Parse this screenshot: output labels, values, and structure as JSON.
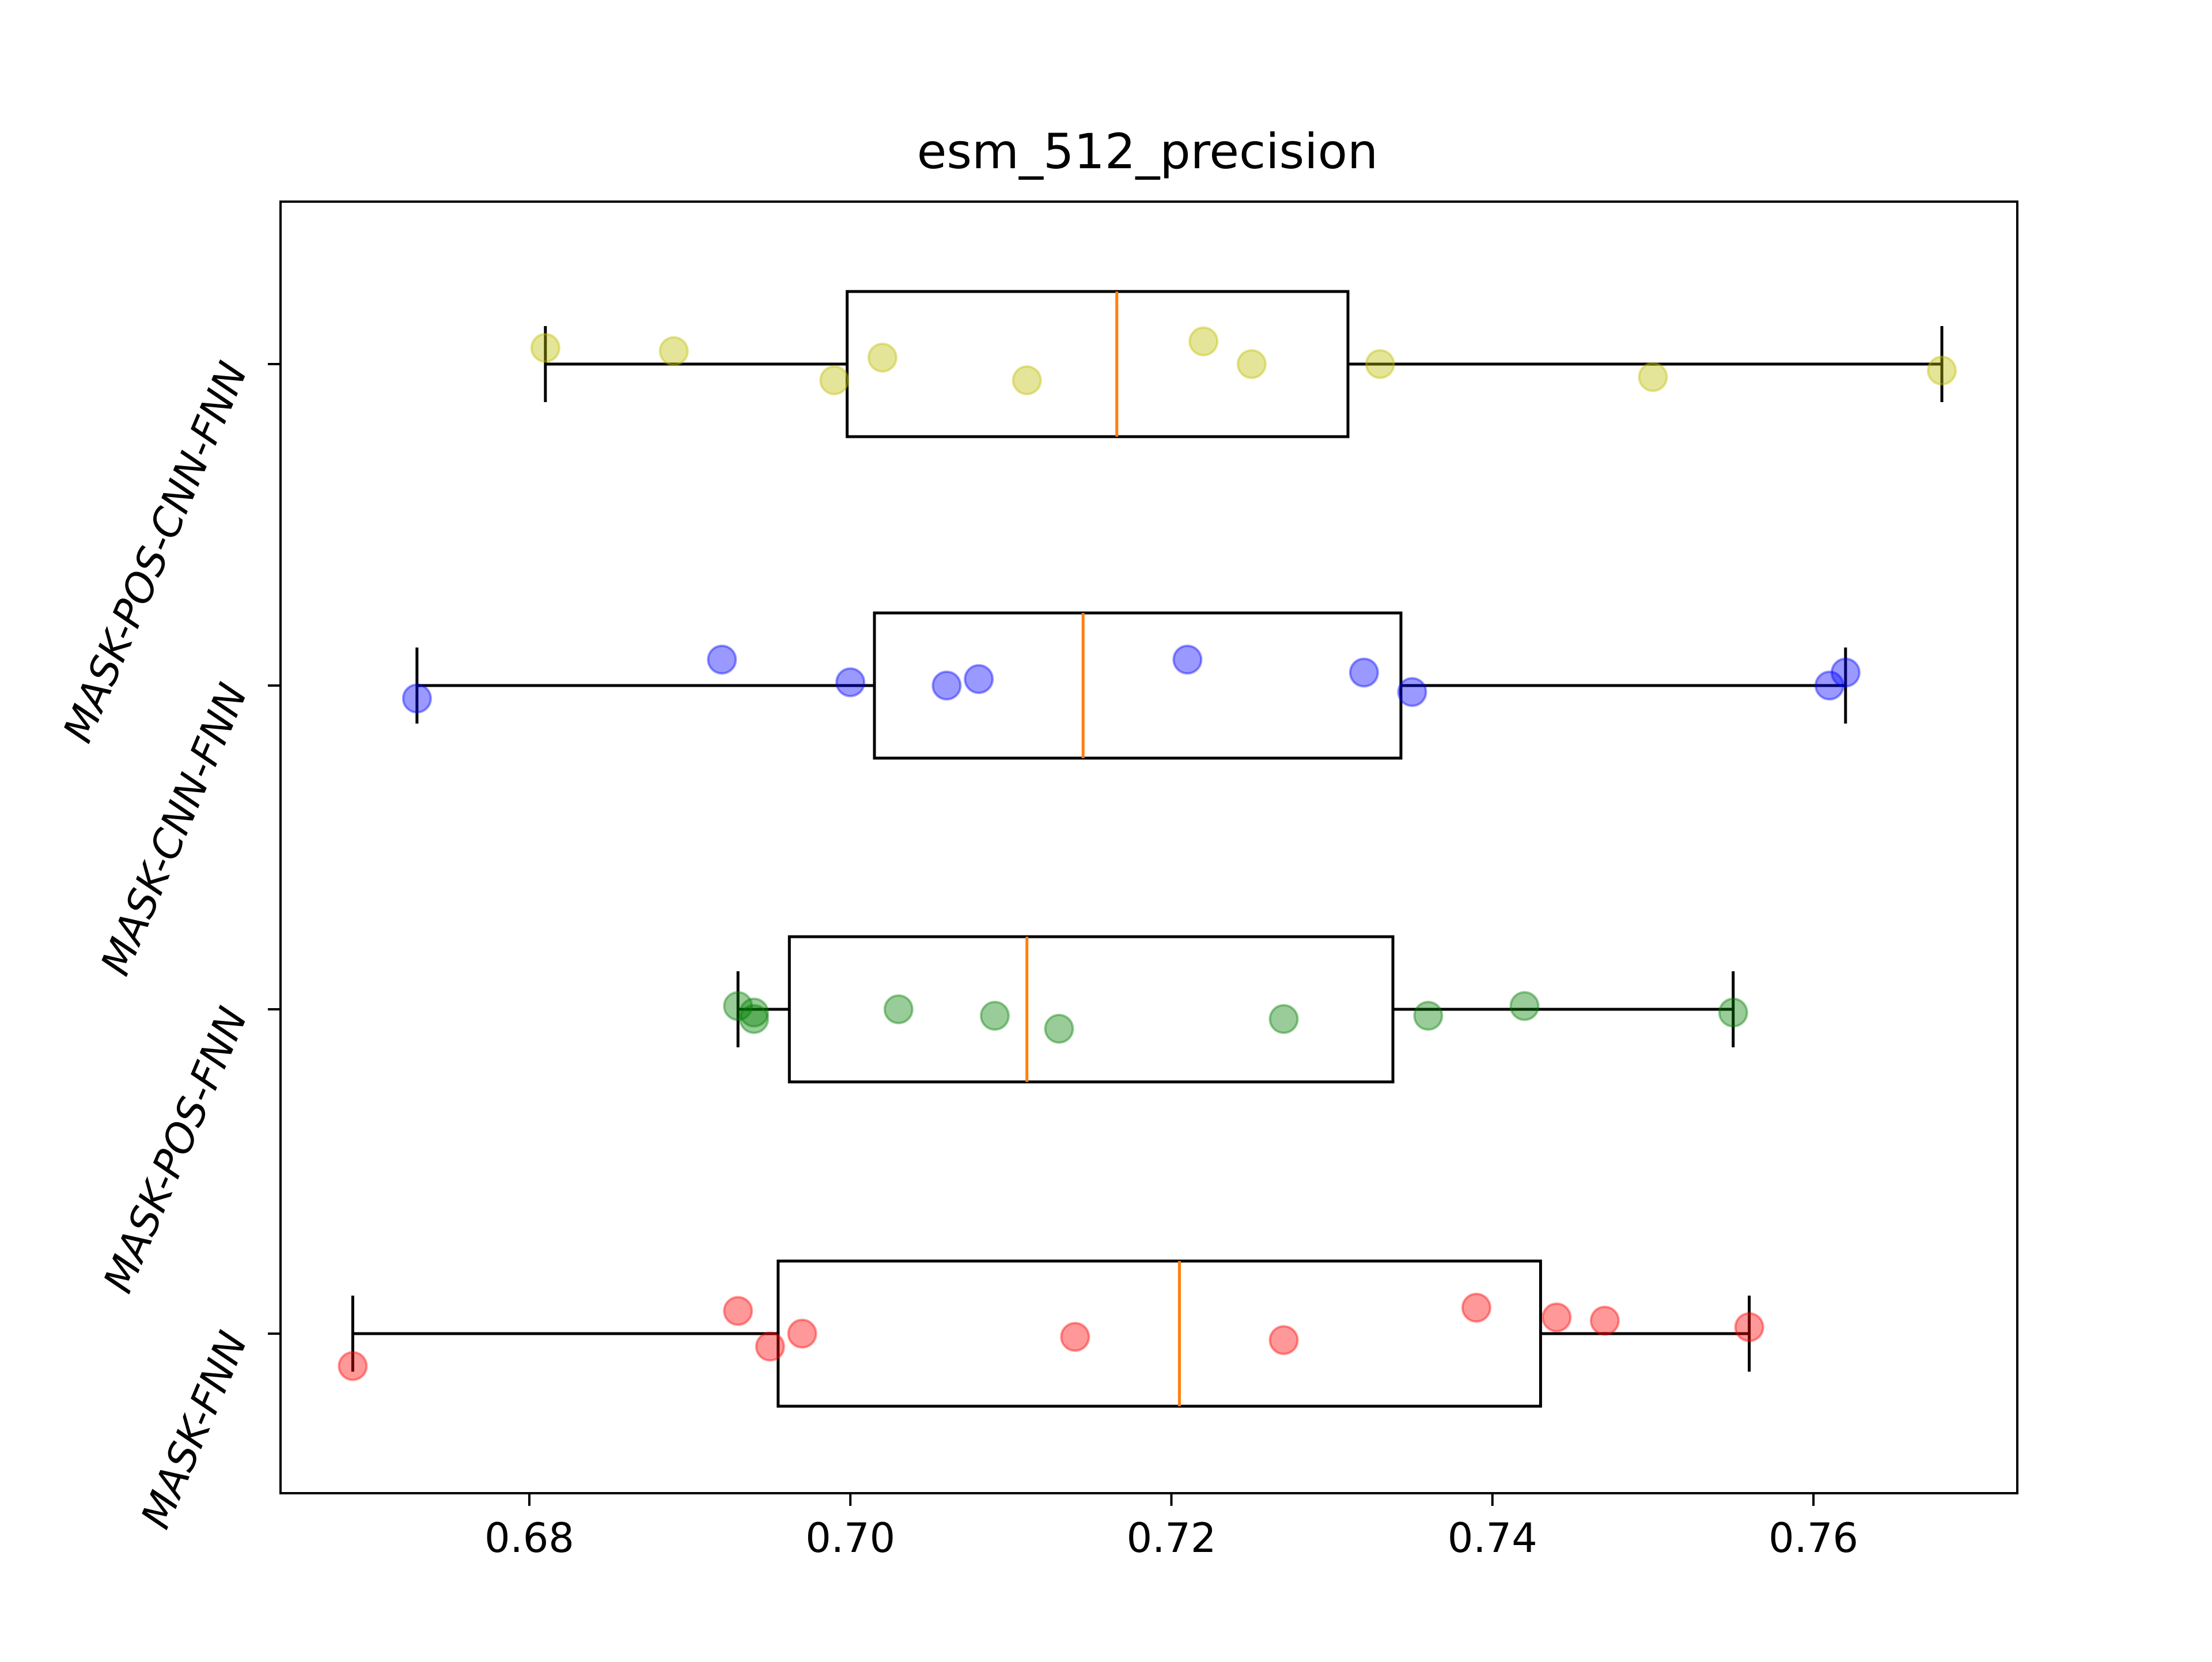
{
  "chart_data": {
    "type": "box",
    "orientation": "horizontal",
    "title": "esm_512_precision",
    "xlabel": "",
    "ylabel": "",
    "xlim": [
      0.6645,
      0.7727
    ],
    "xticks": [
      0.68,
      0.7,
      0.72,
      0.74,
      0.76
    ],
    "xtick_labels": [
      "0.68",
      "0.70",
      "0.72",
      "0.74",
      "0.76"
    ],
    "grid": false,
    "median_color": "#ff7f0e",
    "box_color": "#000000",
    "series": [
      {
        "name": "MASK-FNN",
        "point_color": "#ff0000",
        "box": {
          "whislo": 0.669,
          "q1": 0.6955,
          "median": 0.7205,
          "q3": 0.743,
          "whishi": 0.756
        },
        "points": [
          {
            "x": 0.669,
            "jitter": -0.1
          },
          {
            "x": 0.693,
            "jitter": 0.07
          },
          {
            "x": 0.695,
            "jitter": -0.04
          },
          {
            "x": 0.697,
            "jitter": 0.0
          },
          {
            "x": 0.714,
            "jitter": -0.01
          },
          {
            "x": 0.727,
            "jitter": -0.02
          },
          {
            "x": 0.739,
            "jitter": 0.08
          },
          {
            "x": 0.744,
            "jitter": 0.05
          },
          {
            "x": 0.747,
            "jitter": 0.04
          },
          {
            "x": 0.756,
            "jitter": 0.02
          }
        ]
      },
      {
        "name": "MASK-POS-FNN",
        "point_color": "#008000",
        "box": {
          "whislo": 0.693,
          "q1": 0.6962,
          "median": 0.711,
          "q3": 0.7338,
          "whishi": 0.755
        },
        "points": [
          {
            "x": 0.693,
            "jitter": 0.01
          },
          {
            "x": 0.694,
            "jitter": -0.01
          },
          {
            "x": 0.694,
            "jitter": -0.03
          },
          {
            "x": 0.703,
            "jitter": 0.0
          },
          {
            "x": 0.709,
            "jitter": -0.02
          },
          {
            "x": 0.713,
            "jitter": -0.06
          },
          {
            "x": 0.727,
            "jitter": -0.03
          },
          {
            "x": 0.736,
            "jitter": -0.02
          },
          {
            "x": 0.742,
            "jitter": 0.01
          },
          {
            "x": 0.755,
            "jitter": -0.01
          }
        ]
      },
      {
        "name": "MASK-CNN-FNN",
        "point_color": "#0000ff",
        "box": {
          "whislo": 0.673,
          "q1": 0.7015,
          "median": 0.7145,
          "q3": 0.7343,
          "whishi": 0.762
        },
        "points": [
          {
            "x": 0.673,
            "jitter": -0.04
          },
          {
            "x": 0.692,
            "jitter": 0.08
          },
          {
            "x": 0.7,
            "jitter": 0.01
          },
          {
            "x": 0.706,
            "jitter": 0.0
          },
          {
            "x": 0.708,
            "jitter": 0.02
          },
          {
            "x": 0.721,
            "jitter": 0.08
          },
          {
            "x": 0.732,
            "jitter": 0.04
          },
          {
            "x": 0.735,
            "jitter": -0.02
          },
          {
            "x": 0.761,
            "jitter": 0.0
          },
          {
            "x": 0.762,
            "jitter": 0.04
          }
        ]
      },
      {
        "name": "MASK-POS-CNN-FNN",
        "point_color": "#bfbf00",
        "box": {
          "whislo": 0.681,
          "q1": 0.6998,
          "median": 0.7166,
          "q3": 0.731,
          "whishi": 0.768
        },
        "points": [
          {
            "x": 0.681,
            "jitter": 0.05
          },
          {
            "x": 0.689,
            "jitter": 0.04
          },
          {
            "x": 0.699,
            "jitter": -0.05
          },
          {
            "x": 0.702,
            "jitter": 0.02
          },
          {
            "x": 0.711,
            "jitter": -0.05
          },
          {
            "x": 0.722,
            "jitter": 0.07
          },
          {
            "x": 0.725,
            "jitter": 0.0
          },
          {
            "x": 0.733,
            "jitter": 0.0
          },
          {
            "x": 0.75,
            "jitter": -0.04
          },
          {
            "x": 0.768,
            "jitter": -0.02
          }
        ]
      }
    ]
  }
}
